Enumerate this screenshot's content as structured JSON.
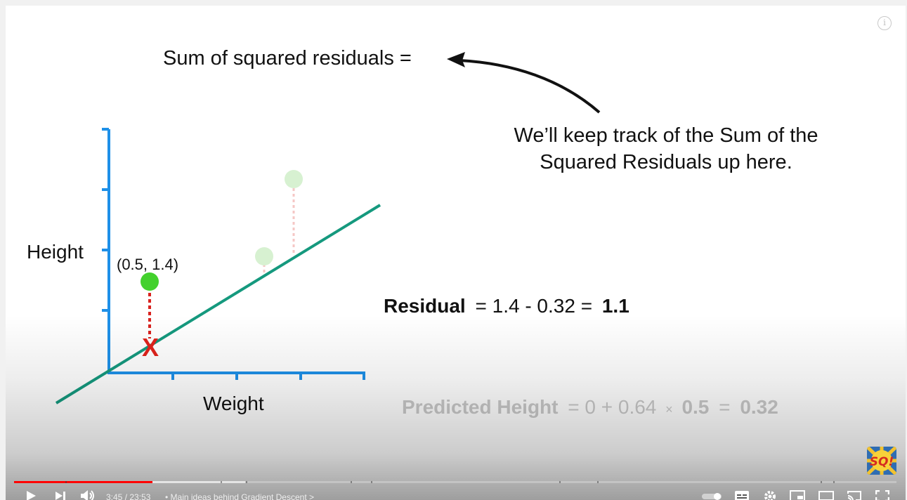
{
  "slide": {
    "title_text": "Sum of squared residuals =",
    "note_line1": "We’ll keep track of the Sum of the",
    "note_line2": "Squared Residuals up here.",
    "y_axis_label": "Height",
    "x_axis_label": "Weight",
    "point_label": "(0.5, 1.4)",
    "residual_label": "Residual",
    "residual_equation": "= 1.4 - 0.32 =",
    "residual_result": "1.1",
    "predicted_label": "Predicted Height",
    "predicted_eq_a": "= 0 + 0.64",
    "predicted_times": "×",
    "predicted_value": "0.5",
    "predicted_eq_b": "=",
    "predicted_result": "0.32",
    "x_marker": "X",
    "logo_text": "SQ!"
  },
  "player": {
    "time_display": "3:45 / 23:53",
    "separator": "•",
    "chapter_title": "Main ideas behind Gradient Descent",
    "chapter_chevron": ">",
    "progress_played_fraction": 0.157,
    "progress_buffered_fraction": 0.262,
    "colors": {
      "played": "#ff0000",
      "buffered": "rgba(255,255,255,0.55)"
    },
    "icons": [
      "play-icon",
      "next-icon",
      "volume-icon",
      "autoplay-toggle-icon",
      "subtitles-icon",
      "settings-icon",
      "miniplayer-icon",
      "theater-mode-icon",
      "cast-icon",
      "fullscreen-icon",
      "info-icon"
    ]
  },
  "colors": {
    "axis": "#1e90e8",
    "fit_line": "#15997e",
    "data_point": "#43d12d",
    "faded_point": "#d7f1d1",
    "residual_line": "#d9231f",
    "faded_residual": "#f5c7c5",
    "x_marker": "#e0231c",
    "faded_text": "#c9c9c9"
  }
}
